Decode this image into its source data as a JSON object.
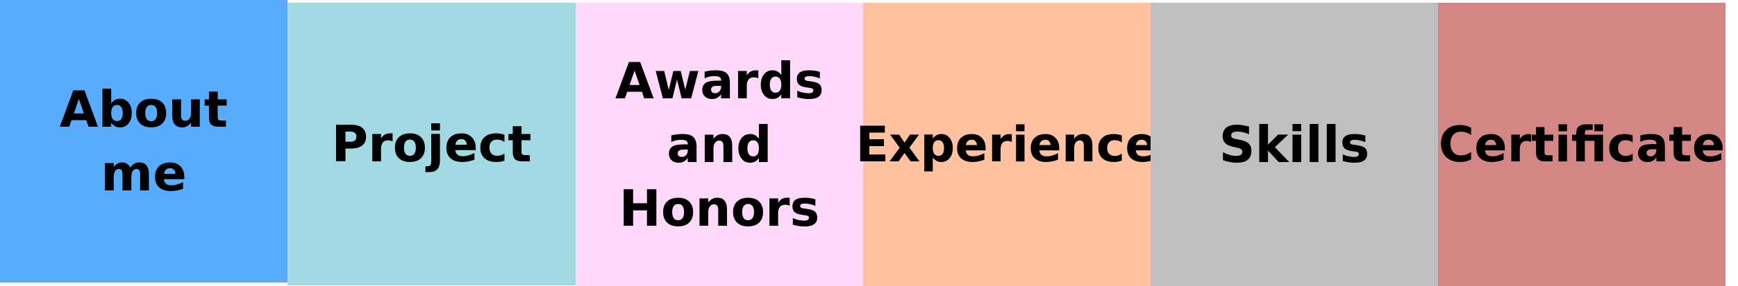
{
  "nav": {
    "tabs": [
      {
        "label": "About me",
        "color": "#58ACFF"
      },
      {
        "label": "Project",
        "color": "#A2D9E2"
      },
      {
        "label": "Awards and Honors",
        "color": "#FDD8F9"
      },
      {
        "label": "Experience",
        "color": "#FFC19F"
      },
      {
        "label": "Skills",
        "color": "#BFBFBF"
      },
      {
        "label": "Certificate",
        "color": "#D38683"
      }
    ]
  }
}
